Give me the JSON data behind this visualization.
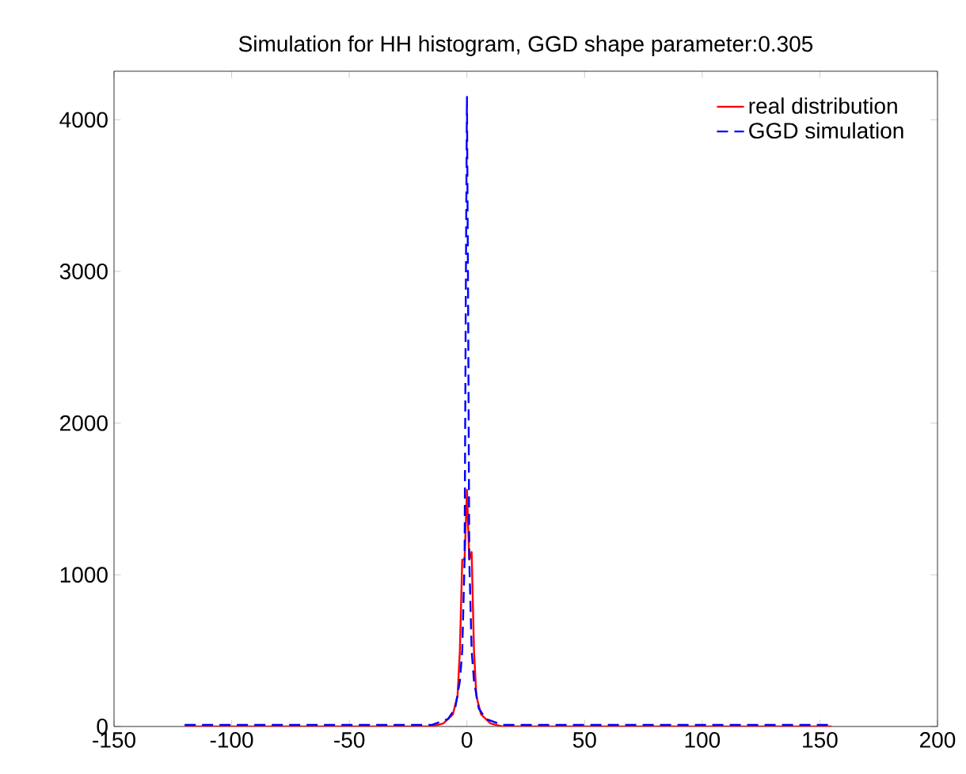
{
  "chart_data": {
    "type": "line",
    "title": "Simulation for HH histogram, GGD shape parameter:0.305",
    "series": [
      {
        "name": "real distribution",
        "color": "#ff0000",
        "line_style": "solid",
        "x": [
          -120,
          -15,
          -10,
          -6,
          -4,
          -3,
          -2,
          -1,
          0,
          1,
          2,
          3,
          4,
          6,
          10,
          15,
          155
        ],
        "values": [
          0,
          0,
          20,
          80,
          200,
          500,
          1100,
          1100,
          1560,
          1100,
          1150,
          500,
          200,
          80,
          20,
          0,
          0
        ]
      },
      {
        "name": "GGD simulation",
        "color": "#0000ff",
        "line_style": "dashed",
        "x": [
          -120,
          -15,
          -8,
          -5,
          -3,
          -2,
          -1,
          -0.5,
          0,
          0.5,
          1,
          2,
          3,
          5,
          8,
          15,
          155
        ],
        "values": [
          10,
          10,
          50,
          120,
          300,
          500,
          1100,
          2800,
          4150,
          2800,
          1100,
          500,
          300,
          120,
          50,
          10,
          10
        ]
      }
    ],
    "xlim": [
      -150,
      200
    ],
    "ylim": [
      0,
      4320
    ],
    "xticks": [
      -150,
      -100,
      -50,
      0,
      50,
      100,
      150,
      200
    ],
    "yticks": [
      0,
      1000,
      2000,
      3000,
      4000
    ],
    "grid": false,
    "legend": "top right",
    "marker": "none"
  }
}
